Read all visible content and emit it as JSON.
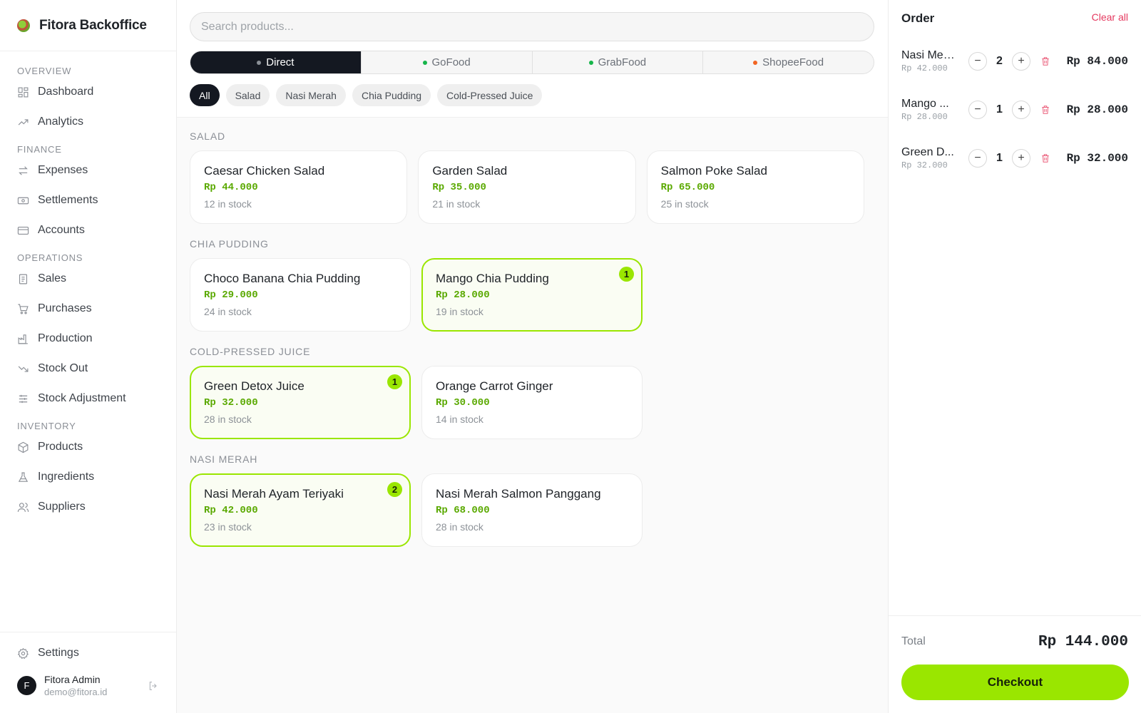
{
  "brand": {
    "name": "Fitora Backoffice"
  },
  "nav": {
    "sections": [
      {
        "label": "OVERVIEW",
        "items": [
          {
            "label": "Dashboard",
            "icon": "dashboard-icon"
          },
          {
            "label": "Analytics",
            "icon": "trend-up-icon"
          }
        ]
      },
      {
        "label": "FINANCE",
        "items": [
          {
            "label": "Expenses",
            "icon": "arrows-swap-icon"
          },
          {
            "label": "Settlements",
            "icon": "banknote-icon"
          },
          {
            "label": "Accounts",
            "icon": "credit-card-icon"
          }
        ]
      },
      {
        "label": "OPERATIONS",
        "items": [
          {
            "label": "Sales",
            "icon": "receipt-icon"
          },
          {
            "label": "Purchases",
            "icon": "cart-icon"
          },
          {
            "label": "Production",
            "icon": "factory-icon"
          },
          {
            "label": "Stock Out",
            "icon": "trend-down-icon"
          },
          {
            "label": "Stock Adjustment",
            "icon": "sliders-icon"
          }
        ]
      },
      {
        "label": "INVENTORY",
        "items": [
          {
            "label": "Products",
            "icon": "box-icon"
          },
          {
            "label": "Ingredients",
            "icon": "flask-icon"
          },
          {
            "label": "Suppliers",
            "icon": "users-icon"
          }
        ]
      }
    ],
    "settings_label": "Settings"
  },
  "user": {
    "initial": "F",
    "name": "Fitora Admin",
    "email": "demo@fitora.id"
  },
  "search": {
    "placeholder": "Search products..."
  },
  "channels": [
    {
      "label": "Direct",
      "dot": "#8a8f96",
      "active": true
    },
    {
      "label": "GoFood",
      "dot": "#16b54a",
      "active": false
    },
    {
      "label": "GrabFood",
      "dot": "#16b54a",
      "active": false
    },
    {
      "label": "ShopeeFood",
      "dot": "#f26522",
      "active": false
    }
  ],
  "filters": [
    {
      "label": "All",
      "active": true
    },
    {
      "label": "Salad",
      "active": false
    },
    {
      "label": "Nasi Merah",
      "active": false
    },
    {
      "label": "Chia Pudding",
      "active": false
    },
    {
      "label": "Cold-Pressed Juice",
      "active": false
    }
  ],
  "categories": [
    {
      "title": "SALAD",
      "products": [
        {
          "name": "Caesar Chicken Salad",
          "price": "Rp 44.000",
          "stock": "12 in stock",
          "qty": ""
        },
        {
          "name": "Garden Salad",
          "price": "Rp 35.000",
          "stock": "21 in stock",
          "qty": ""
        },
        {
          "name": "Salmon Poke Salad",
          "price": "Rp 65.000",
          "stock": "25 in stock",
          "qty": ""
        }
      ]
    },
    {
      "title": "CHIA PUDDING",
      "products": [
        {
          "name": "Choco Banana Chia Pudding",
          "price": "Rp 29.000",
          "stock": "24 in stock",
          "qty": ""
        },
        {
          "name": "Mango Chia Pudding",
          "price": "Rp 28.000",
          "stock": "19 in stock",
          "qty": "1"
        }
      ]
    },
    {
      "title": "COLD-PRESSED JUICE",
      "products": [
        {
          "name": "Green Detox Juice",
          "price": "Rp 32.000",
          "stock": "28 in stock",
          "qty": "1"
        },
        {
          "name": "Orange Carrot Ginger",
          "price": "Rp 30.000",
          "stock": "14 in stock",
          "qty": ""
        }
      ]
    },
    {
      "title": "NASI MERAH",
      "products": [
        {
          "name": "Nasi Merah Ayam Teriyaki",
          "price": "Rp 42.000",
          "stock": "23 in stock",
          "qty": "2"
        },
        {
          "name": "Nasi Merah Salmon Panggang",
          "price": "Rp 68.000",
          "stock": "28 in stock",
          "qty": ""
        }
      ]
    }
  ],
  "order": {
    "title": "Order",
    "clear_label": "Clear all",
    "lines": [
      {
        "name": "Nasi Mer...",
        "unit": "Rp 42.000",
        "qty": "2",
        "total": "Rp 84.000"
      },
      {
        "name": "Mango ...",
        "unit": "Rp 28.000",
        "qty": "1",
        "total": "Rp 28.000"
      },
      {
        "name": "Green D...",
        "unit": "Rp 32.000",
        "qty": "1",
        "total": "Rp 32.000"
      }
    ],
    "total_label": "Total",
    "total_value": "Rp 144.000",
    "checkout_label": "Checkout",
    "minus_label": "−",
    "plus_label": "+"
  }
}
